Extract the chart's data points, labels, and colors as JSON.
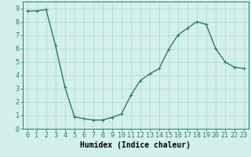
{
  "x": [
    0,
    1,
    2,
    3,
    4,
    5,
    6,
    7,
    8,
    9,
    10,
    11,
    12,
    13,
    14,
    15,
    16,
    17,
    18,
    19,
    20,
    21,
    22,
    23
  ],
  "y": [
    8.8,
    8.8,
    8.9,
    6.2,
    3.1,
    0.9,
    0.75,
    0.65,
    0.65,
    0.85,
    1.1,
    2.5,
    3.6,
    4.1,
    4.5,
    5.9,
    7.0,
    7.5,
    8.0,
    7.8,
    6.0,
    5.0,
    4.6,
    4.5
  ],
  "line_color": "#2d7a6e",
  "marker": "+",
  "marker_size": 3,
  "linewidth": 1.0,
  "xlabel": "Humidex (Indice chaleur)",
  "xlim": [
    -0.5,
    23.5
  ],
  "ylim": [
    0,
    9.5
  ],
  "xticks": [
    0,
    1,
    2,
    3,
    4,
    5,
    6,
    7,
    8,
    9,
    10,
    11,
    12,
    13,
    14,
    15,
    16,
    17,
    18,
    19,
    20,
    21,
    22,
    23
  ],
  "yticks": [
    0,
    1,
    2,
    3,
    4,
    5,
    6,
    7,
    8,
    9
  ],
  "bg_color": "#d4f0ec",
  "grid_color": "#a8d8cc",
  "xlabel_fontsize": 7,
  "tick_fontsize": 6
}
